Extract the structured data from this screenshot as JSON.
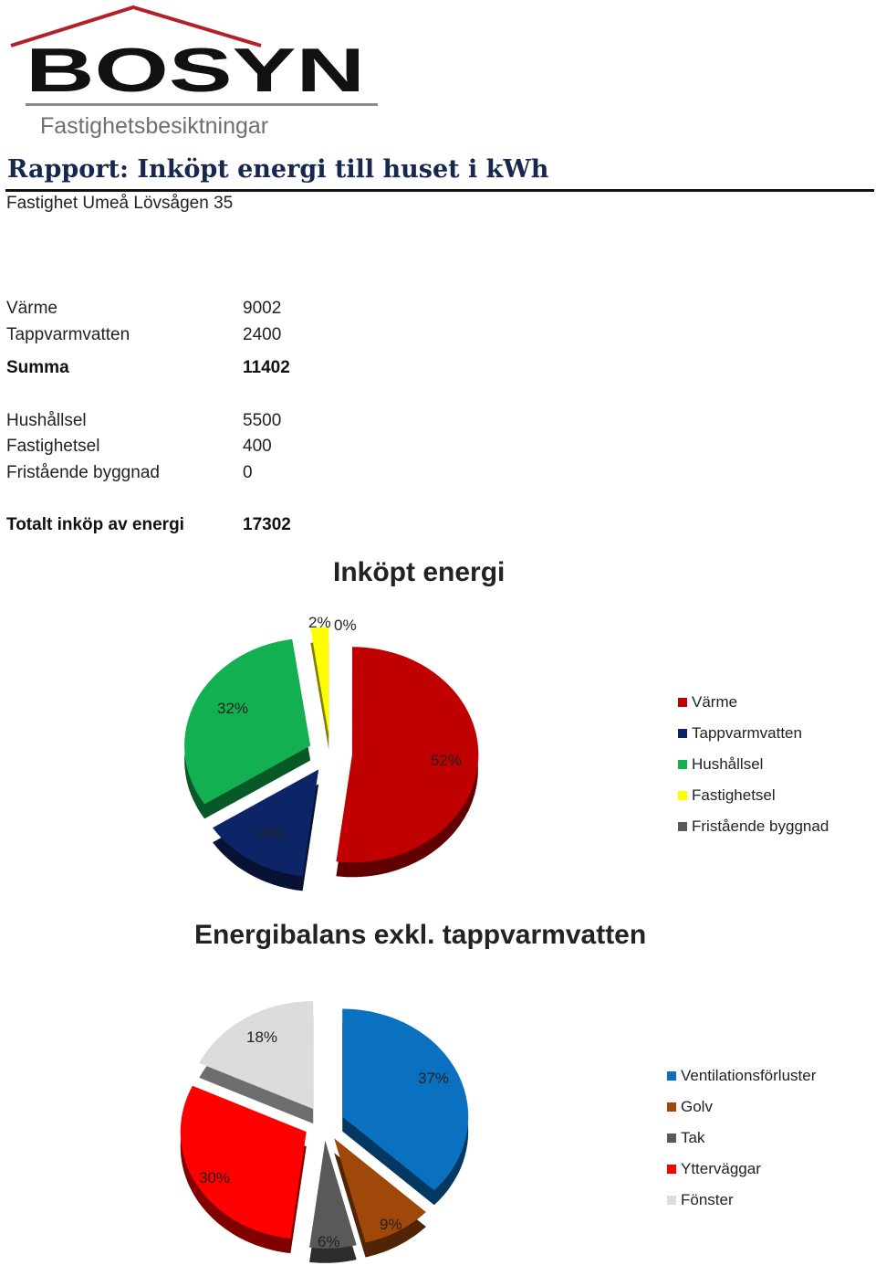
{
  "brand": {
    "logo_text": "BoSyn",
    "tagline": "Fastighetsbesiktningar",
    "roof_color": "#b3202a",
    "text_color": "#111111",
    "tagline_color": "#6f6f6f"
  },
  "report": {
    "title": "Rapport: Inköpt energi till huset i kWh",
    "property": "Fastighet Umeå Lövsågen 35"
  },
  "energy_table": {
    "group1": [
      {
        "label": "Värme",
        "value": "9002"
      },
      {
        "label": "Tappvarmvatten",
        "value": "2400"
      }
    ],
    "sum": {
      "label": "Summa",
      "value": "11402"
    },
    "group2": [
      {
        "label": "Hushållsel",
        "value": "5500"
      },
      {
        "label": "Fastighetsel",
        "value": "400"
      },
      {
        "label": "Fristående byggnad",
        "value": "0"
      }
    ],
    "total": {
      "label": "Totalt inköp av energi",
      "value": "17302"
    }
  },
  "chart_data": [
    {
      "type": "pie",
      "title": "Inköpt energi",
      "legend_position": "right",
      "exploded": true,
      "categories": [
        "Värme",
        "Tappvarmvatten",
        "Hushållsel",
        "Fastighetsel",
        "Fristående byggnad"
      ],
      "values": [
        9002,
        2400,
        5500,
        400,
        0
      ],
      "percent_labels": [
        "52%",
        "14%",
        "32%",
        "2%",
        "0%"
      ],
      "colors": [
        "#c00000",
        "#0d2467",
        "#12b050",
        "#ffff00",
        "#595959"
      ]
    },
    {
      "type": "pie",
      "title": "Energibalans exkl. tappvarmvatten",
      "legend_position": "right",
      "exploded": true,
      "categories": [
        "Ventilationsförluster",
        "Golv",
        "Tak",
        "Ytterväggar",
        "Fönster"
      ],
      "values": [
        37,
        9,
        6,
        30,
        18
      ],
      "percent_labels": [
        "37%",
        "9%",
        "6%",
        "30%",
        "18%"
      ],
      "colors": [
        "#0a70c0",
        "#a0470a",
        "#595959",
        "#ff0000",
        "#dcdcdc"
      ]
    }
  ]
}
